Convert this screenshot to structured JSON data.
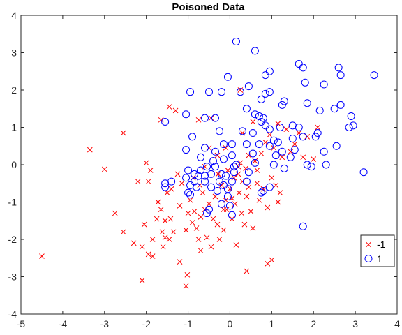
{
  "chart_data": {
    "type": "scatter",
    "title": "Poisoned Data",
    "xlabel": "",
    "ylabel": "",
    "xlim": [
      -5,
      4
    ],
    "ylim": [
      -4,
      4
    ],
    "xticks": [
      "-5",
      "-4",
      "-3",
      "-2",
      "-1",
      "0",
      "1",
      "2",
      "3",
      "4"
    ],
    "yticks": [
      "-4",
      "-3",
      "-2",
      "-1",
      "0",
      "1",
      "2",
      "3",
      "4"
    ],
    "grid": false,
    "legend_position": "right",
    "series": [
      {
        "name": "-1",
        "marker": "x",
        "color": "#ff0000",
        "points": [
          [
            -4.5,
            -2.45
          ],
          [
            -3.35,
            0.4
          ],
          [
            -3.0,
            -0.12
          ],
          [
            -2.75,
            -1.3
          ],
          [
            -2.55,
            -1.8
          ],
          [
            -2.55,
            0.85
          ],
          [
            -2.3,
            -2.1
          ],
          [
            -2.1,
            -3.1
          ],
          [
            -2.05,
            -1.6
          ],
          [
            -2.0,
            0.05
          ],
          [
            -1.95,
            -2.4
          ],
          [
            -1.95,
            -0.45
          ],
          [
            -1.9,
            -0.15
          ],
          [
            -1.85,
            -2.0
          ],
          [
            -1.75,
            -1.45
          ],
          [
            -1.72,
            -1.0
          ],
          [
            -1.65,
            -1.2
          ],
          [
            -1.62,
            -1.8
          ],
          [
            -1.6,
            -2.2
          ],
          [
            -1.55,
            -1.95
          ],
          [
            -1.5,
            -0.75
          ],
          [
            -1.45,
            -2.0
          ],
          [
            -1.42,
            -1.45
          ],
          [
            -1.4,
            -0.65
          ],
          [
            -1.35,
            -1.8
          ],
          [
            -1.3,
            1.45
          ],
          [
            -1.25,
            -0.25
          ],
          [
            -1.2,
            -1.1
          ],
          [
            -1.15,
            -0.5
          ],
          [
            -1.05,
            -1.75
          ],
          [
            -1.02,
            -2.95
          ],
          [
            -1.0,
            -1.3
          ],
          [
            -0.95,
            -0.95
          ],
          [
            -0.9,
            -1.55
          ],
          [
            -0.88,
            -0.35
          ],
          [
            -0.85,
            -1.25
          ],
          [
            -0.8,
            -1.7
          ],
          [
            -0.75,
            -2.0
          ],
          [
            -0.72,
            -0.55
          ],
          [
            -0.7,
            -1.4
          ],
          [
            -0.65,
            -0.75
          ],
          [
            -0.6,
            -1.2
          ],
          [
            -0.55,
            -1.95
          ],
          [
            -0.5,
            -1.05
          ],
          [
            -0.45,
            -2.2
          ],
          [
            -0.4,
            -1.45
          ],
          [
            -0.35,
            -0.85
          ],
          [
            -0.3,
            -1.6
          ],
          [
            -0.28,
            -0.25
          ],
          [
            -0.25,
            -2.0
          ],
          [
            -0.2,
            -0.55
          ],
          [
            -0.15,
            -1.75
          ],
          [
            -0.1,
            -0.95
          ],
          [
            -0.08,
            -1.2
          ],
          [
            -0.05,
            -0.15
          ],
          [
            0.0,
            -0.65
          ],
          [
            0.05,
            -1.45
          ],
          [
            0.1,
            -0.35
          ],
          [
            0.12,
            -1.05
          ],
          [
            0.15,
            -2.15
          ],
          [
            0.2,
            -0.25
          ],
          [
            0.22,
            -0.75
          ],
          [
            0.25,
            0.05
          ],
          [
            0.28,
            -1.3
          ],
          [
            0.3,
            -0.45
          ],
          [
            0.35,
            -1.6
          ],
          [
            0.38,
            -0.1
          ],
          [
            0.4,
            -0.85
          ],
          [
            0.45,
            0.25
          ],
          [
            0.5,
            -1.25
          ],
          [
            0.55,
            -1.7
          ],
          [
            0.6,
            0.1
          ],
          [
            0.65,
            -0.5
          ],
          [
            0.7,
            -0.95
          ],
          [
            0.75,
            0.3
          ],
          [
            0.8,
            -0.65
          ],
          [
            0.85,
            0.6
          ],
          [
            0.9,
            -1.15
          ],
          [
            0.95,
            0.8
          ],
          [
            1.0,
            -0.35
          ],
          [
            1.05,
            0.45
          ],
          [
            1.1,
            -0.55
          ],
          [
            1.15,
            1.1
          ],
          [
            1.2,
            -0.75
          ],
          [
            1.25,
            0.2
          ],
          [
            1.35,
            0.95
          ],
          [
            1.45,
            0.35
          ],
          [
            1.55,
            0.55
          ],
          [
            1.65,
            0.85
          ],
          [
            1.75,
            0.2
          ],
          [
            1.85,
            0.75
          ],
          [
            2.0,
            0.15
          ],
          [
            2.1,
            1.0
          ],
          [
            -0.5,
            0.45
          ],
          [
            -0.3,
            0.25
          ],
          [
            0.3,
            0.85
          ],
          [
            0.55,
            1.15
          ],
          [
            -0.1,
            0.45
          ],
          [
            -1.65,
            1.2
          ],
          [
            -1.45,
            1.55
          ],
          [
            -2.1,
            -2.2
          ],
          [
            -1.55,
            -1.5
          ],
          [
            -1.85,
            -2.45
          ],
          [
            -0.45,
            1.25
          ],
          [
            -0.75,
            1.2
          ],
          [
            0.4,
            -2.85
          ],
          [
            0.9,
            -2.65
          ],
          [
            1.0,
            -2.55
          ],
          [
            -1.05,
            -3.25
          ],
          [
            -0.15,
            -1.2
          ],
          [
            0.25,
            2.0
          ],
          [
            0.65,
            -0.15
          ],
          [
            0.45,
            -0.6
          ],
          [
            1.15,
            -1.0
          ],
          [
            -2.2,
            -0.45
          ],
          [
            -1.2,
            -2.6
          ],
          [
            0.05,
            -0.9
          ],
          [
            -0.6,
            -0.05
          ],
          [
            -0.7,
            -2.3
          ],
          [
            0.2,
            -0.05
          ]
        ]
      },
      {
        "name": "1",
        "marker": "o",
        "color": "#0000ff",
        "points": [
          [
            0.15,
            3.3
          ],
          [
            0.6,
            3.05
          ],
          [
            1.65,
            2.7
          ],
          [
            1.75,
            2.6
          ],
          [
            2.6,
            2.6
          ],
          [
            2.65,
            2.4
          ],
          [
            3.45,
            2.4
          ],
          [
            0.95,
            2.5
          ],
          [
            0.85,
            2.4
          ],
          [
            -0.05,
            2.35
          ],
          [
            0.45,
            2.1
          ],
          [
            0.25,
            1.95
          ],
          [
            1.8,
            2.2
          ],
          [
            2.25,
            2.15
          ],
          [
            -0.95,
            1.95
          ],
          [
            -0.5,
            1.95
          ],
          [
            -0.2,
            1.95
          ],
          [
            0.85,
            1.9
          ],
          [
            0.95,
            1.95
          ],
          [
            1.85,
            1.65
          ],
          [
            2.65,
            1.6
          ],
          [
            1.25,
            1.6
          ],
          [
            1.3,
            1.7
          ],
          [
            0.75,
            1.75
          ],
          [
            0.4,
            1.5
          ],
          [
            0.6,
            1.35
          ],
          [
            0.7,
            1.3
          ],
          [
            0.75,
            1.15
          ],
          [
            0.8,
            1.25
          ],
          [
            0.85,
            1.05
          ],
          [
            2.15,
            1.45
          ],
          [
            2.5,
            1.5
          ],
          [
            2.85,
            1.0
          ],
          [
            2.9,
            1.3
          ],
          [
            2.95,
            1.05
          ],
          [
            2.55,
            0.5
          ],
          [
            1.5,
            1.05
          ],
          [
            1.65,
            1.0
          ],
          [
            1.75,
            0.75
          ],
          [
            2.1,
            0.85
          ],
          [
            2.05,
            0.75
          ],
          [
            1.2,
            1.0
          ],
          [
            1.05,
            0.65
          ],
          [
            0.95,
            0.5
          ],
          [
            1.25,
            0.35
          ],
          [
            0.55,
            0.3
          ],
          [
            -0.6,
            1.25
          ],
          [
            -0.35,
            1.25
          ],
          [
            -1.05,
            1.35
          ],
          [
            -1.55,
            1.15
          ],
          [
            0.05,
            0.55
          ],
          [
            0.3,
            0.9
          ],
          [
            1.15,
            0.6
          ],
          [
            0.05,
            0.25
          ],
          [
            -0.4,
            0.1
          ],
          [
            -0.55,
            -0.05
          ],
          [
            -0.7,
            -0.15
          ],
          [
            -0.75,
            -0.3
          ],
          [
            -0.85,
            -0.25
          ],
          [
            -0.95,
            -0.55
          ],
          [
            -1.05,
            0.4
          ],
          [
            -1.0,
            -0.15
          ],
          [
            -1.05,
            -0.35
          ],
          [
            -0.95,
            -0.8
          ],
          [
            -1.0,
            -0.75
          ],
          [
            -1.55,
            -0.5
          ],
          [
            -1.55,
            -0.6
          ],
          [
            -1.4,
            -0.45
          ],
          [
            -0.6,
            -0.45
          ],
          [
            -0.45,
            -0.6
          ],
          [
            -0.3,
            -0.7
          ],
          [
            -0.2,
            -0.25
          ],
          [
            -0.15,
            -0.55
          ],
          [
            -0.05,
            -0.65
          ],
          [
            -0.05,
            -0.85
          ],
          [
            0.0,
            -1.1
          ],
          [
            0.05,
            -0.45
          ],
          [
            0.05,
            -1.35
          ],
          [
            -0.5,
            -1.2
          ],
          [
            -0.55,
            -1.3
          ],
          [
            -0.2,
            -1.05
          ],
          [
            0.1,
            -0.2
          ],
          [
            0.15,
            0.0
          ],
          [
            0.4,
            -0.45
          ],
          [
            0.45,
            -0.2
          ],
          [
            0.75,
            -0.75
          ],
          [
            0.8,
            -0.7
          ],
          [
            0.95,
            -0.6
          ],
          [
            1.05,
            0.0
          ],
          [
            1.3,
            -0.1
          ],
          [
            1.45,
            0.2
          ],
          [
            1.55,
            0.4
          ],
          [
            1.85,
            0.0
          ],
          [
            1.95,
            -0.05
          ],
          [
            2.3,
            0.0
          ],
          [
            3.2,
            -0.2
          ],
          [
            1.75,
            -1.65
          ],
          [
            -0.9,
            0.75
          ],
          [
            -0.25,
            0.9
          ],
          [
            -0.15,
            0.55
          ],
          [
            -0.35,
            -0.05
          ],
          [
            -0.45,
            -0.25
          ],
          [
            -0.25,
            -0.45
          ],
          [
            -0.6,
            -0.3
          ],
          [
            -0.85,
            -0.45
          ],
          [
            0.6,
            0.05
          ],
          [
            0.55,
            0.85
          ],
          [
            0.4,
            0.55
          ],
          [
            -0.7,
            0.2
          ],
          [
            -0.35,
            0.35
          ],
          [
            -0.6,
            0.45
          ],
          [
            0.95,
            0.95
          ],
          [
            1.5,
            0.7
          ],
          [
            0.1,
            -0.05
          ],
          [
            -0.1,
            -0.3
          ],
          [
            0.7,
            0.55
          ],
          [
            1.1,
            0.25
          ],
          [
            -0.15,
            0.15
          ],
          [
            -0.8,
            -0.6
          ],
          [
            2.25,
            0.35
          ]
        ]
      }
    ]
  }
}
